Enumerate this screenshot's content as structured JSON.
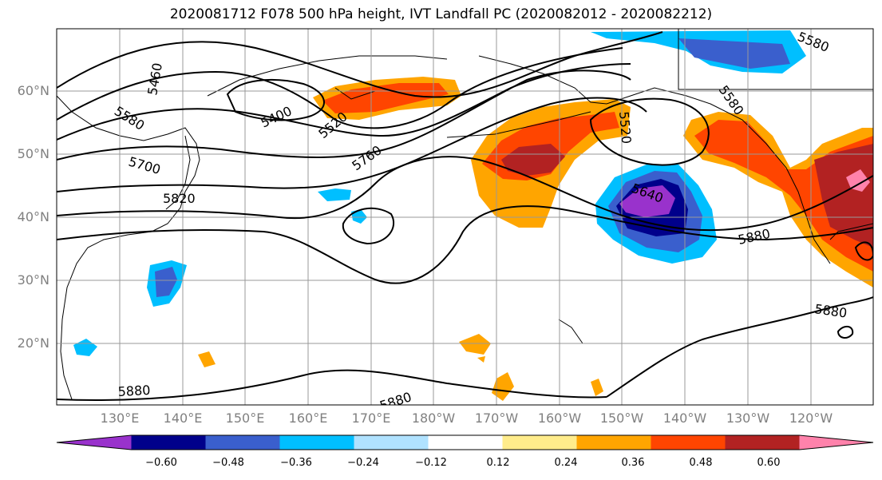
{
  "title": "2020081712 F078 500 hPa height, IVT Landfall PC (2020082012 - 2020082212)",
  "lat_labels": [
    "60°N",
    "50°N",
    "40°N",
    "30°N",
    "20°N"
  ],
  "lon_labels": [
    "130°E",
    "140°E",
    "150°E",
    "160°E",
    "170°E",
    "180°W",
    "170°W",
    "160°W",
    "150°W",
    "140°W",
    "130°W",
    "120°W"
  ],
  "contour_labels": [
    "5460",
    "5400",
    "5520",
    "5580",
    "5700",
    "5760",
    "5820",
    "5640",
    "5520",
    "5580",
    "5880",
    "5880",
    "5880",
    "5880",
    "5580"
  ],
  "colorbar": {
    "ticks": [
      "−0.60",
      "−0.48",
      "−0.36",
      "−0.24",
      "−0.12",
      "0.12",
      "0.24",
      "0.36",
      "0.48",
      "0.60"
    ],
    "colors": [
      "#9932cc",
      "#00008b",
      "#3a5fcd",
      "#00bfff",
      "#b0e2ff",
      "#ffffff",
      "#ffec8b",
      "#ffa500",
      "#ff4500",
      "#b22222",
      "#ff82ab"
    ]
  }
}
